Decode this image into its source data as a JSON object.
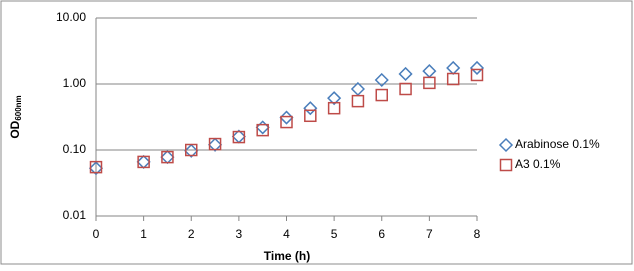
{
  "chart_data": {
    "type": "scatter",
    "y_label": "OD",
    "y_label_sub": "600nm",
    "x_label": "Time (h)",
    "x": [
      0,
      1,
      1.5,
      2,
      2.5,
      3,
      3.5,
      4,
      4.5,
      5,
      5.5,
      6,
      6.5,
      7,
      7.5,
      8
    ],
    "series": [
      {
        "name": "Arabinose 0.1%",
        "color": "#4a7ebb",
        "marker": "diamond",
        "values": [
          0.053,
          0.066,
          0.078,
          0.097,
          0.12,
          0.16,
          0.22,
          0.31,
          0.43,
          0.61,
          0.84,
          1.15,
          1.42,
          1.57,
          1.75,
          1.75
        ]
      },
      {
        "name": "A3 0.1%",
        "color": "#be4b48",
        "marker": "square",
        "values": [
          0.055,
          0.066,
          0.078,
          0.1,
          0.123,
          0.157,
          0.2,
          0.265,
          0.33,
          0.43,
          0.55,
          0.68,
          0.84,
          1.04,
          1.19,
          1.37
        ]
      }
    ],
    "xlim": [
      0,
      8
    ],
    "xticks": [
      0,
      1,
      2,
      3,
      4,
      5,
      6,
      7,
      8
    ],
    "ylim": [
      0.01,
      10
    ],
    "log_y": true,
    "yticks": [
      {
        "value": 0.01,
        "label": "0.01"
      },
      {
        "value": 0.1,
        "label": "0.10"
      },
      {
        "value": 1,
        "label": "1.00"
      },
      {
        "value": 10,
        "label": "10.00"
      }
    ],
    "grid": true,
    "legend": "right"
  }
}
